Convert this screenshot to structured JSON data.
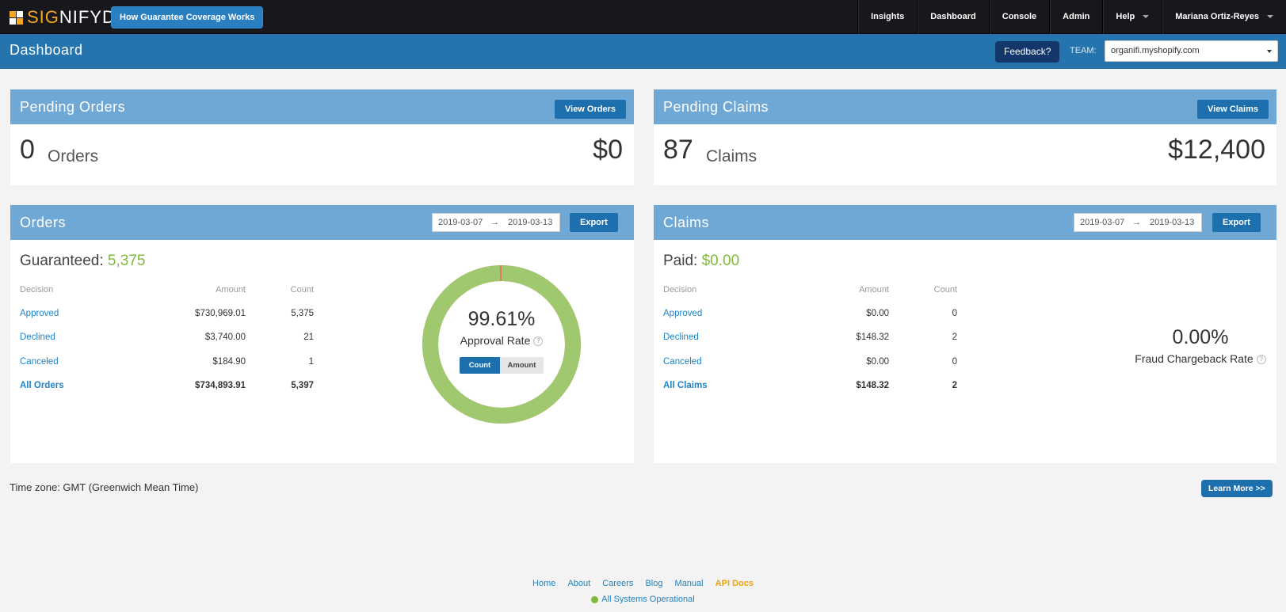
{
  "topnav": {
    "logo_prefix": "SIG",
    "logo_suffix": "NIFYD",
    "guarantee_button": "How Guarantee Coverage Works",
    "links": [
      "Insights",
      "Dashboard",
      "Console",
      "Admin",
      "Help"
    ],
    "user": "Mariana Ortiz-Reyes"
  },
  "subheader": {
    "title": "Dashboard",
    "feedback": "Feedback?",
    "team_label": "TEAM:",
    "team_value": "organifi.myshopify.com"
  },
  "pending_orders": {
    "title": "Pending Orders",
    "button": "View Orders",
    "count": "0",
    "unit": "Orders",
    "amount": "$0"
  },
  "pending_claims": {
    "title": "Pending Claims",
    "button": "View Claims",
    "count": "87",
    "unit": "Claims",
    "amount": "$12,400"
  },
  "orders": {
    "title": "Orders",
    "date_from": "2019-03-07",
    "date_arrow": "→",
    "date_to": "2019-03-13",
    "export": "Export",
    "summary_label": "Guaranteed:",
    "summary_value": "5,375",
    "headers": {
      "decision": "Decision",
      "amount": "Amount",
      "count": "Count"
    },
    "rows": [
      {
        "decision": "Approved",
        "amount": "$730,969.01",
        "count": "5,375"
      },
      {
        "decision": "Declined",
        "amount": "$3,740.00",
        "count": "21"
      },
      {
        "decision": "Canceled",
        "amount": "$184.90",
        "count": "1"
      }
    ],
    "total": {
      "decision": "All Orders",
      "amount": "$734,893.91",
      "count": "5,397"
    },
    "approval_rate": "99.61%",
    "approval_fraction": 0.9961,
    "approval_label": "Approval Rate",
    "toggle_count": "Count",
    "toggle_amount": "Amount",
    "colors": {
      "approved": "#9fc86f",
      "declined": "#e07a5f"
    }
  },
  "claims": {
    "title": "Claims",
    "date_from": "2019-03-07",
    "date_arrow": "→",
    "date_to": "2019-03-13",
    "export": "Export",
    "summary_label": "Paid:",
    "summary_value": "$0.00",
    "headers": {
      "decision": "Decision",
      "amount": "Amount",
      "count": "Count"
    },
    "rows": [
      {
        "decision": "Approved",
        "amount": "$0.00",
        "count": "0"
      },
      {
        "decision": "Declined",
        "amount": "$148.32",
        "count": "2"
      },
      {
        "decision": "Canceled",
        "amount": "$0.00",
        "count": "0"
      }
    ],
    "total": {
      "decision": "All Claims",
      "amount": "$148.32",
      "count": "2"
    },
    "fraud_rate": "0.00%",
    "fraud_label": "Fraud Chargeback Rate"
  },
  "timezone": "Time zone: GMT (Greenwich Mean Time)",
  "learn_more": "Learn More >>",
  "footer": {
    "links": [
      "Home",
      "About",
      "Careers",
      "Blog",
      "Manual",
      "API Docs"
    ],
    "status": "All Systems Operational"
  }
}
